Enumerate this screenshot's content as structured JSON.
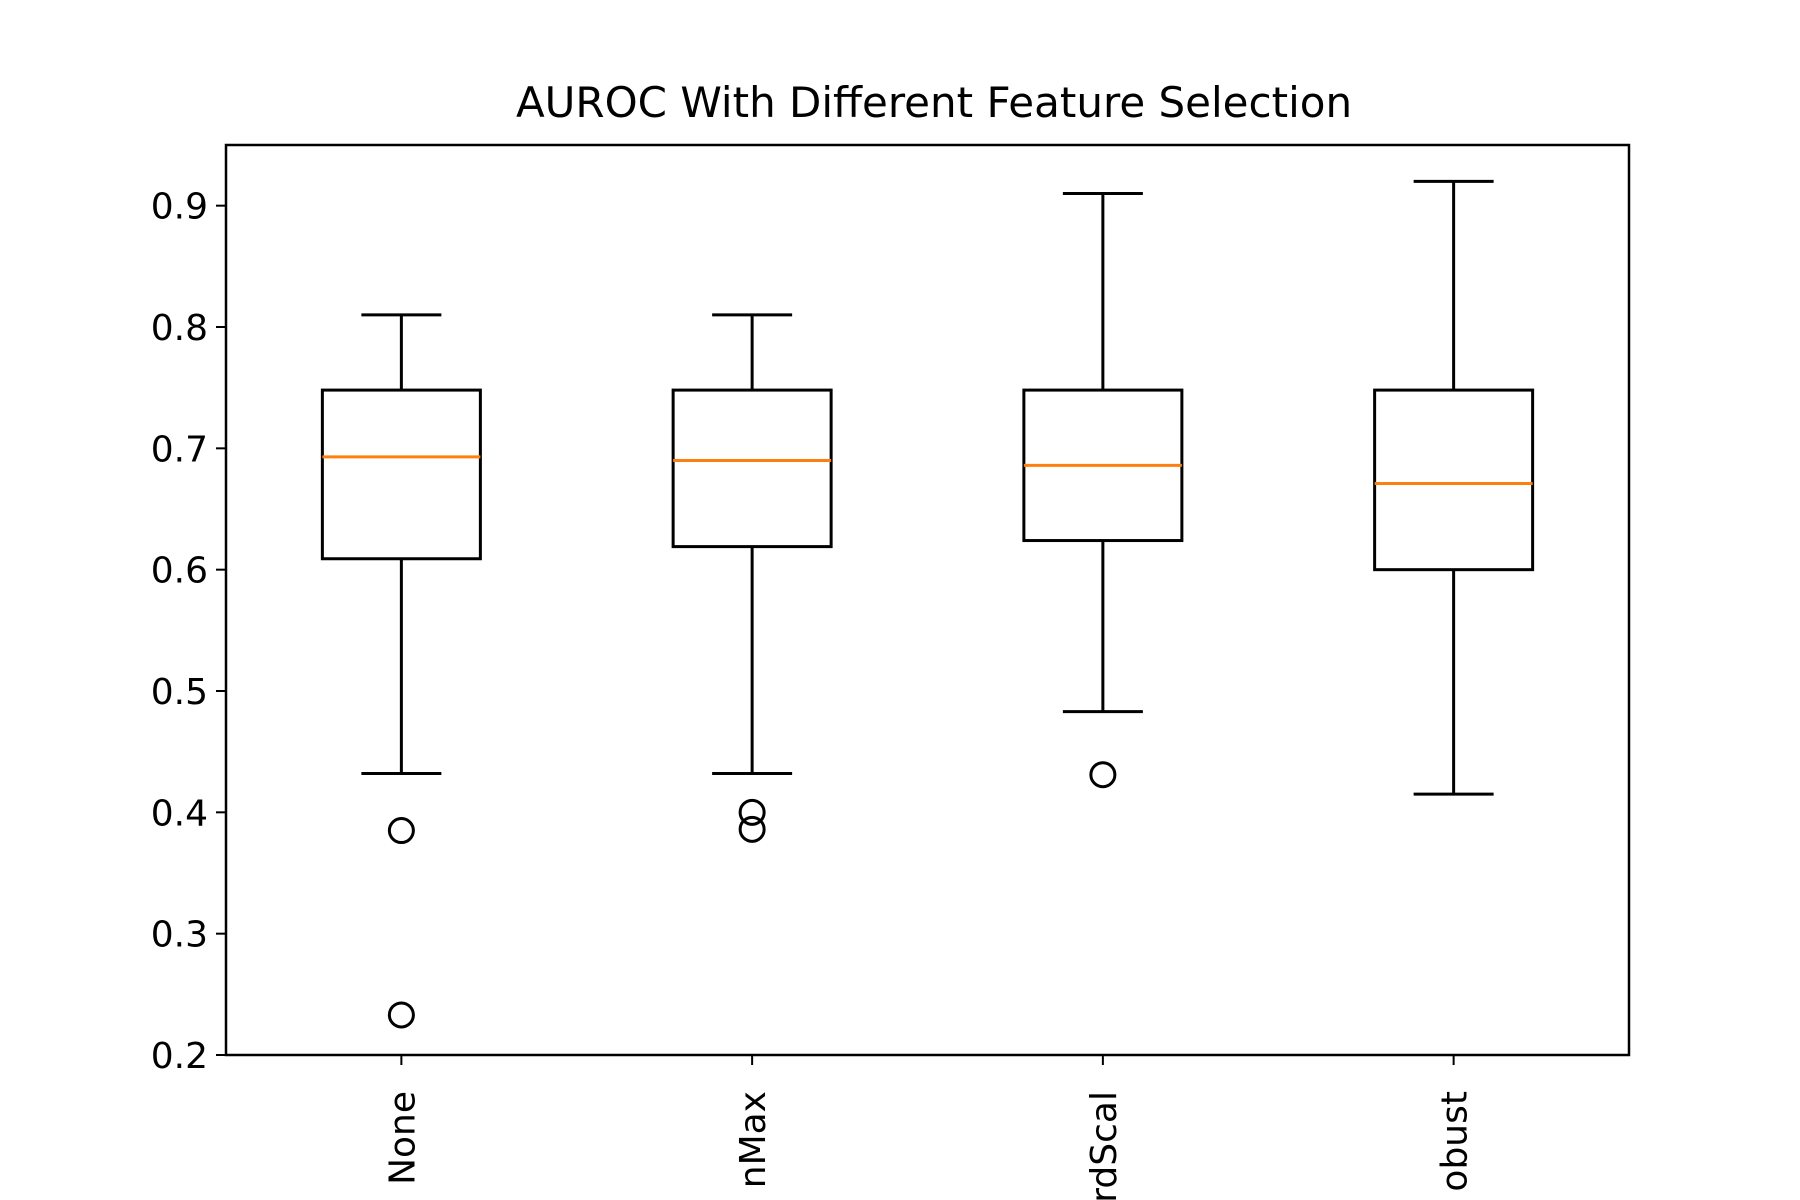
{
  "chart_data": {
    "type": "box",
    "title": "AUROC With Different Feature Selection",
    "xlabel": "",
    "ylabel": "",
    "ylim": [
      0.2,
      0.95
    ],
    "yticks": [
      0.2,
      0.3,
      0.4,
      0.5,
      0.6,
      0.7,
      0.8,
      0.9
    ],
    "ytick_labels": [
      "0.2",
      "0.3",
      "0.4",
      "0.5",
      "0.6",
      "0.7",
      "0.8",
      "0.9"
    ],
    "categories": [
      "None",
      "nMax",
      "rdScal",
      "obust"
    ],
    "series": [
      {
        "category": "None",
        "whisker_low": 0.432,
        "q1": 0.609,
        "median": 0.693,
        "q3": 0.748,
        "whisker_high": 0.81,
        "outliers": [
          0.385,
          0.233
        ]
      },
      {
        "category": "nMax",
        "whisker_low": 0.432,
        "q1": 0.619,
        "median": 0.69,
        "q3": 0.748,
        "whisker_high": 0.81,
        "outliers": [
          0.4,
          0.386
        ]
      },
      {
        "category": "rdScal",
        "whisker_low": 0.483,
        "q1": 0.624,
        "median": 0.686,
        "q3": 0.748,
        "whisker_high": 0.91,
        "outliers": [
          0.431
        ]
      },
      {
        "category": "obust",
        "whisker_low": 0.415,
        "q1": 0.6,
        "median": 0.671,
        "q3": 0.748,
        "whisker_high": 0.92,
        "outliers": []
      }
    ],
    "grid": false,
    "colors": {
      "box": "#000000",
      "median": "#ff7f0e",
      "outlier": "#000000"
    }
  }
}
